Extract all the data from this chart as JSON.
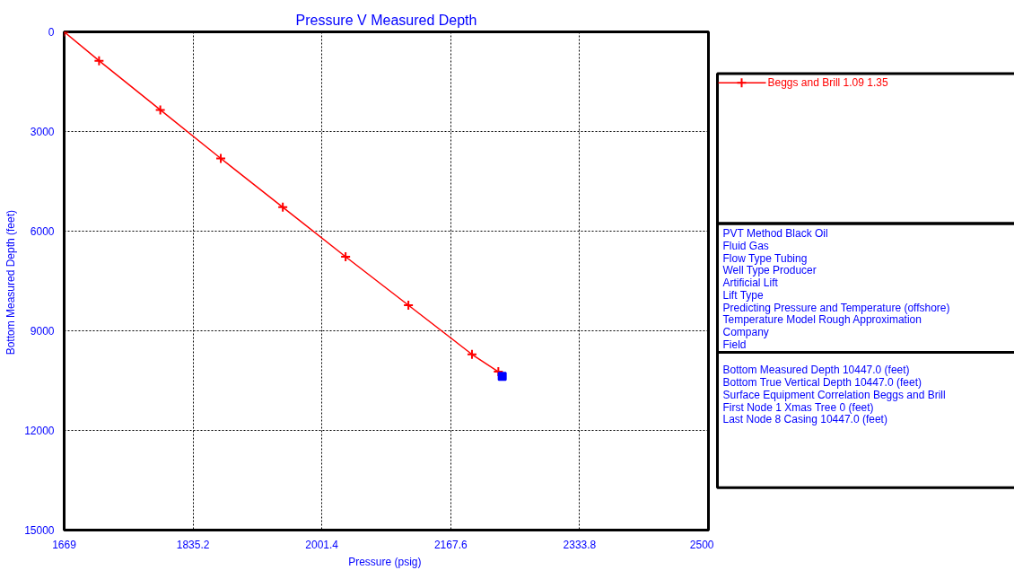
{
  "chart_data": {
    "type": "line",
    "title": "Pressure V Measured Depth",
    "xlabel": "Pressure  (psig)",
    "ylabel": "Bottom Measured Depth  (feet)",
    "series": [
      {
        "name": "Beggs and Brill 1.09 1.35",
        "color": "#ff0000",
        "marker": "cross",
        "x": [
          1669,
          1714,
          1793,
          1871,
          1951,
          2032,
          2113,
          2195,
          2229
        ],
        "values": [
          0,
          870,
          2350,
          3810,
          5280,
          6770,
          8230,
          9710,
          10230
        ]
      },
      {
        "type": "scatter",
        "color": "#0000ff",
        "marker": "square",
        "x": [
          2234
        ],
        "values": [
          10370
        ]
      }
    ],
    "xlim": [
      1669,
      2500
    ],
    "xticks": [
      1669,
      1835.2,
      2001.4,
      2167.6,
      2333.8,
      2500
    ],
    "ylim": [
      15000,
      0
    ],
    "yticks": [
      0,
      3000,
      6000,
      9000,
      12000,
      15000
    ],
    "grid": true,
    "legend": "right",
    "line_style": "solid",
    "annotations": [
      "PVT Method Black Oil",
      "Fluid Gas",
      "Flow Type Tubing",
      "Well Type Producer",
      "Artificial Lift",
      "Lift Type",
      "Predicting Pressure and Temperature (offshore)",
      "Temperature Model Rough Approximation",
      "Company",
      "Field",
      "Bottom Measured Depth 10447.0 (feet)",
      "Bottom True Vertical Depth 10447.0 (feet)",
      "Surface Equipment Correlation Beggs and Brill",
      "First Node 1 Xmas Tree 0 (feet)",
      "Last Node 8 Casing 10447.0 (feet)"
    ]
  }
}
